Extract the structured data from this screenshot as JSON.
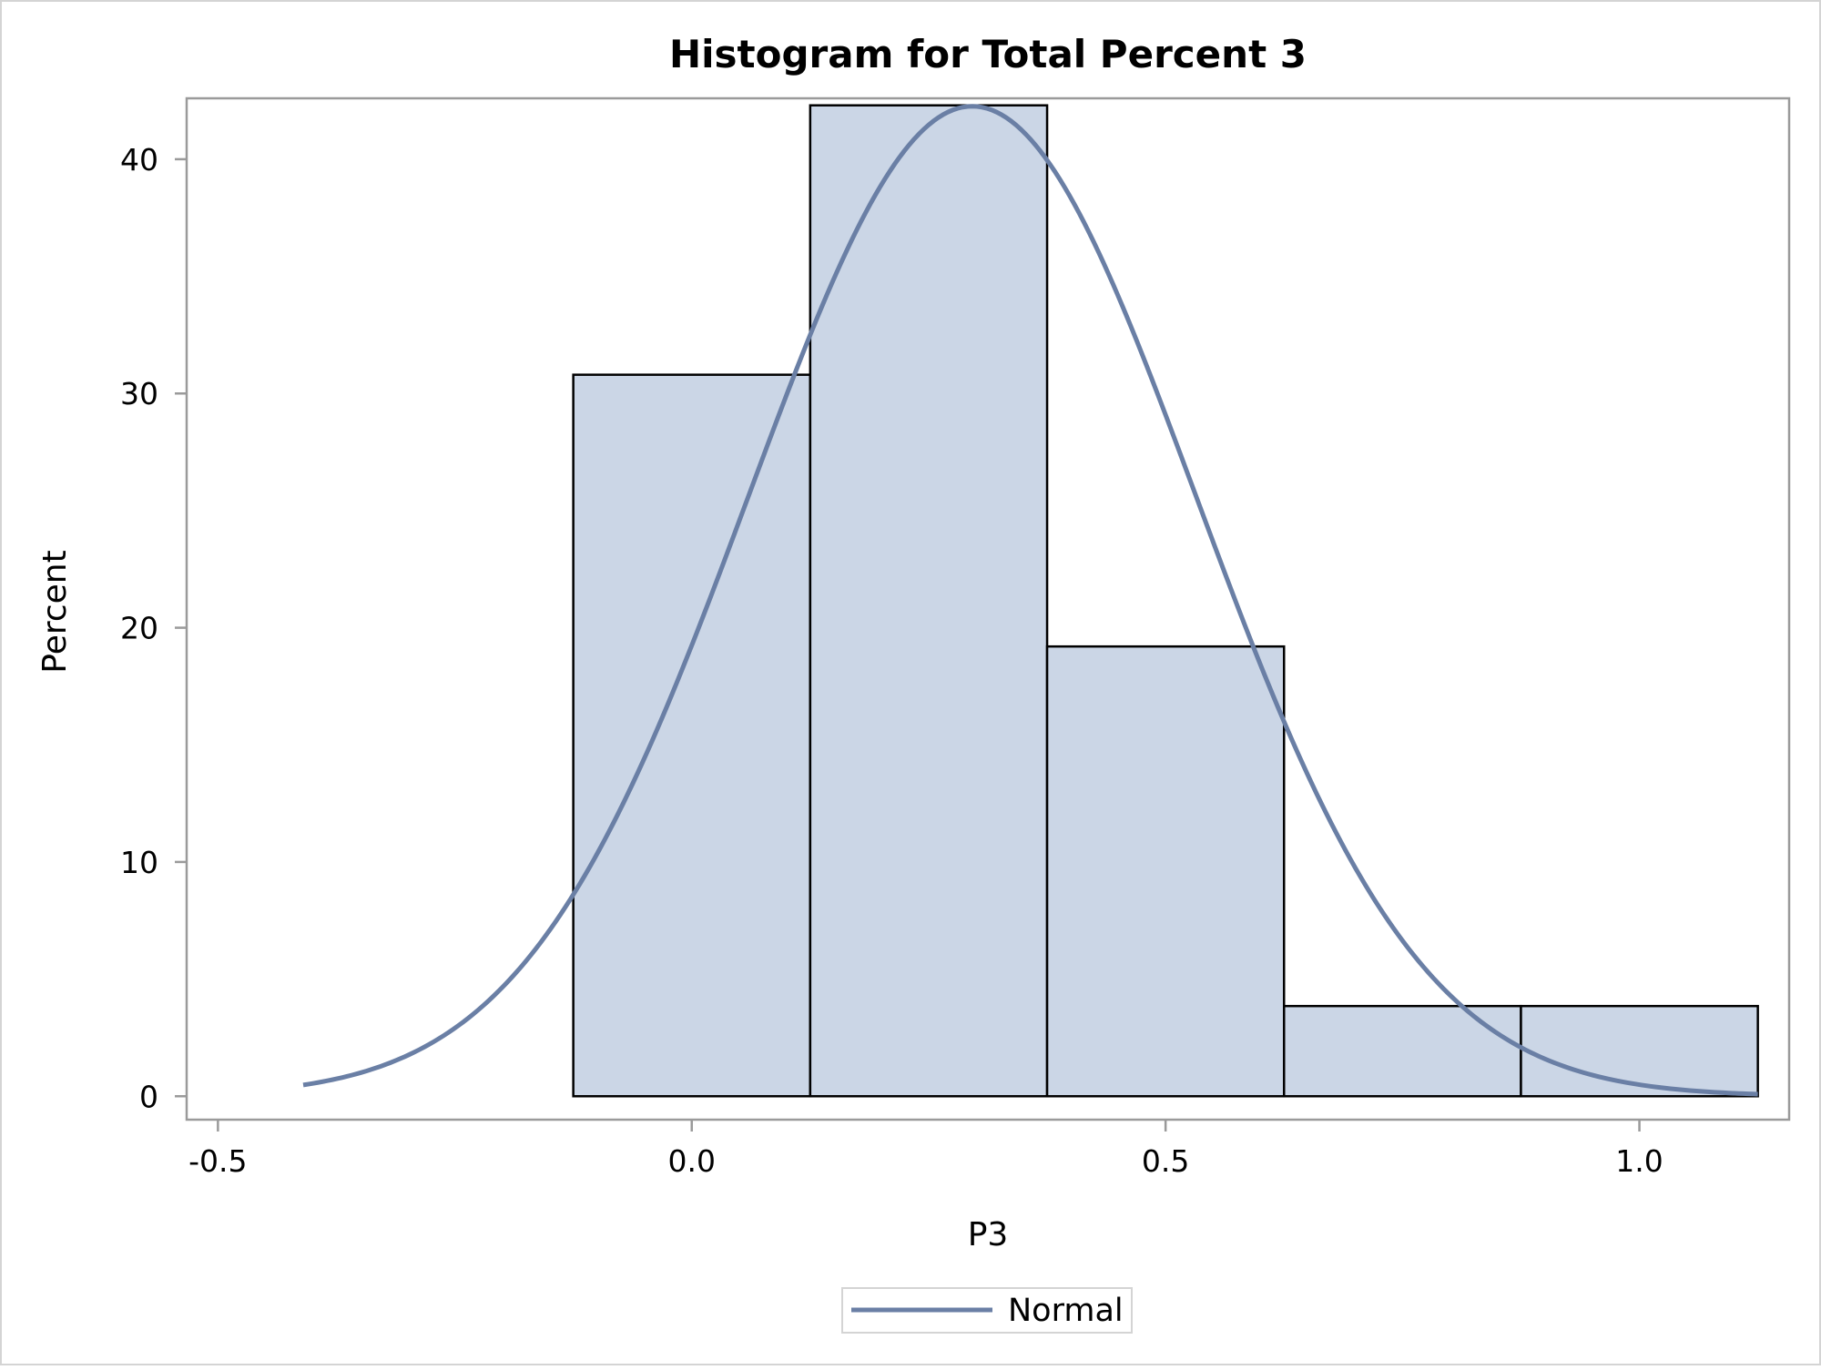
{
  "chart_data": {
    "type": "bar",
    "title": "Histogram for Total Percent 3",
    "xlabel": "P3",
    "ylabel": "Percent",
    "xlim": [
      -0.533,
      1.158
    ],
    "ylim": [
      -1.0,
      42.6
    ],
    "x_ticks": [
      {
        "value": -0.5,
        "label": "-0.5"
      },
      {
        "value": 0.0,
        "label": "0.0"
      },
      {
        "value": 0.5,
        "label": "0.5"
      },
      {
        "value": 1.0,
        "label": "1.0"
      }
    ],
    "y_ticks": [
      {
        "value": 0,
        "label": "0"
      },
      {
        "value": 10,
        "label": "10"
      },
      {
        "value": 20,
        "label": "20"
      },
      {
        "value": 30,
        "label": "30"
      },
      {
        "value": 40,
        "label": "40"
      }
    ],
    "bins": [
      {
        "start": -0.125,
        "end": 0.125,
        "value": 30.8
      },
      {
        "start": 0.125,
        "end": 0.375,
        "value": 42.3
      },
      {
        "start": 0.375,
        "end": 0.625,
        "value": 19.2
      },
      {
        "start": 0.625,
        "end": 0.875,
        "value": 3.85
      },
      {
        "start": 0.875,
        "end": 1.125,
        "value": 3.85
      }
    ],
    "normal_curve": {
      "mean": 0.296,
      "sd": 0.236,
      "scale_percent_per_unit": 25.0,
      "x_range": [
        -0.41,
        1.125
      ]
    },
    "grid": false,
    "legend": {
      "placement": "bottom-center",
      "entries": [
        {
          "name": "Normal",
          "color": "#6a7fa5"
        }
      ]
    },
    "colors": {
      "bar_fill": "#cbd6e6",
      "bar_stroke": "#000000",
      "curve": "#6a7fa5",
      "frame": "#9a9a9a"
    }
  }
}
